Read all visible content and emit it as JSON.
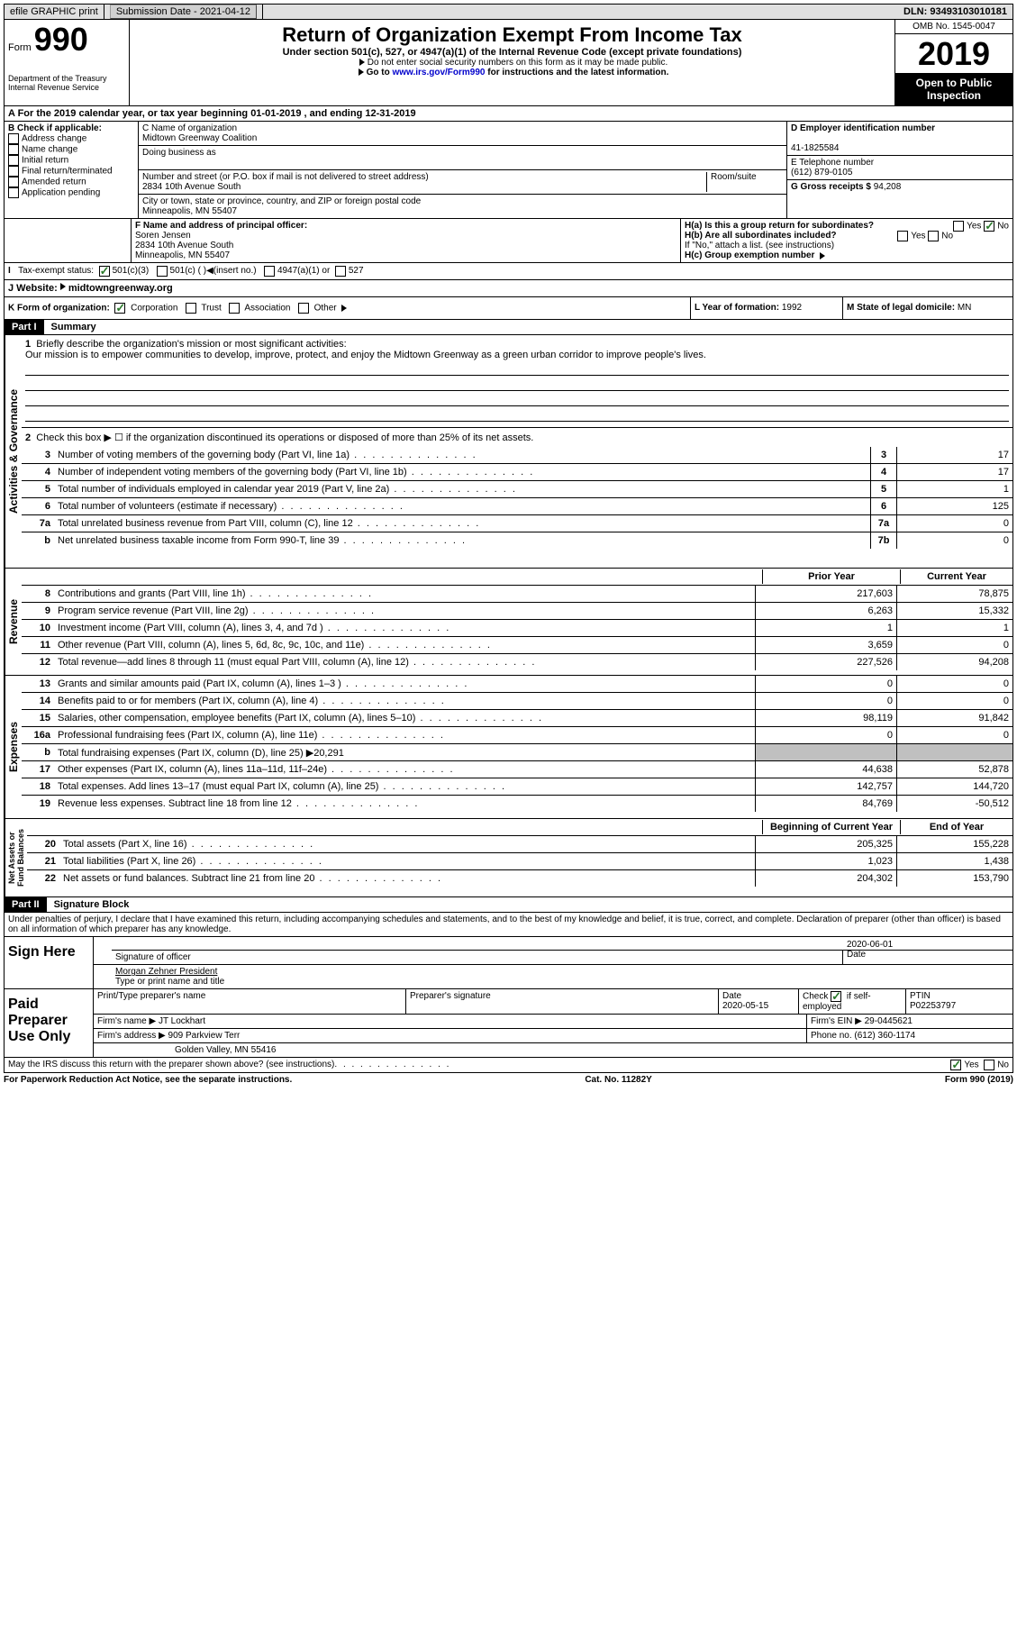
{
  "topbar": {
    "efile": "efile GRAPHIC print",
    "submission": "Submission Date - 2021-04-12",
    "dln": "DLN: 93493103010181"
  },
  "header": {
    "form_prefix": "Form",
    "form_num": "990",
    "dept": "Department of the Treasury\nInternal Revenue Service",
    "title": "Return of Organization Exempt From Income Tax",
    "subtitle": "Under section 501(c), 527, or 4947(a)(1) of the Internal Revenue Code (except private foundations)",
    "note1": "Do not enter social security numbers on this form as it may be made public.",
    "note2_pre": "Go to ",
    "note2_link": "www.irs.gov/Form990",
    "note2_post": " for instructions and the latest information.",
    "omb": "OMB No. 1545-0047",
    "year": "2019",
    "inspection": "Open to Public Inspection"
  },
  "section_a": "A For the 2019 calendar year, or tax year beginning 01-01-2019    , and ending 12-31-2019",
  "section_b": {
    "label": "B Check if applicable:",
    "addr": "Address change",
    "name": "Name change",
    "initial": "Initial return",
    "final": "Final return/terminated",
    "amended": "Amended return",
    "pending": "Application pending"
  },
  "section_c": {
    "name_label": "C Name of organization",
    "name": "Midtown Greenway Coalition",
    "dba": "Doing business as",
    "addr_label": "Number and street (or P.O. box if mail is not delivered to street address)",
    "room": "Room/suite",
    "addr": "2834 10th Avenue South",
    "city_label": "City or town, state or province, country, and ZIP or foreign postal code",
    "city": "Minneapolis, MN  55407"
  },
  "section_d": {
    "ein_label": "D Employer identification number",
    "ein": "41-1825584",
    "phone_label": "E Telephone number",
    "phone": "(612) 879-0105",
    "gross_label": "G Gross receipts $",
    "gross": "94,208"
  },
  "section_f": {
    "label": "F  Name and address of principal officer:",
    "name": "Soren Jensen",
    "addr": "2834 10th Avenue South",
    "city": "Minneapolis, MN  55407"
  },
  "section_h": {
    "ha": "H(a)  Is this a group return for subordinates?",
    "hb": "H(b)  Are all subordinates included?",
    "hb_note": "If \"No,\" attach a list. (see instructions)",
    "hc": "H(c)  Group exemption number",
    "yes": "Yes",
    "no": "No"
  },
  "tax_status": {
    "label": "Tax-exempt status:",
    "opt1": "501(c)(3)",
    "opt2": "501(c) (  )",
    "insert": "(insert no.)",
    "opt3": "4947(a)(1) or",
    "opt4": "527"
  },
  "website": {
    "label": "J    Website:",
    "url": "midtowngreenway.org"
  },
  "section_k": {
    "label": "K Form of organization:",
    "corp": "Corporation",
    "trust": "Trust",
    "assoc": "Association",
    "other": "Other"
  },
  "section_l": {
    "label": "L Year of formation:",
    "val": "1992"
  },
  "section_m": {
    "label": "M State of legal domicile:",
    "val": "MN"
  },
  "part1": {
    "header": "Part I",
    "title": "Summary"
  },
  "activities": {
    "label": "Activities & Governance",
    "line1_label": "Briefly describe the organization's mission or most significant activities:",
    "line1_text": "Our mission is to empower communities to develop, improve, protect, and enjoy the Midtown Greenway as a green urban corridor to improve people's lives.",
    "line2": "Check this box ▶ ☐ if the organization discontinued its operations or disposed of more than 25% of its net assets.",
    "lines": [
      {
        "n": "3",
        "t": "Number of voting members of the governing body (Part VI, line 1a)",
        "b": "3",
        "v": "17"
      },
      {
        "n": "4",
        "t": "Number of independent voting members of the governing body (Part VI, line 1b)",
        "b": "4",
        "v": "17"
      },
      {
        "n": "5",
        "t": "Total number of individuals employed in calendar year 2019 (Part V, line 2a)",
        "b": "5",
        "v": "1"
      },
      {
        "n": "6",
        "t": "Total number of volunteers (estimate if necessary)",
        "b": "6",
        "v": "125"
      },
      {
        "n": "7a",
        "t": "Total unrelated business revenue from Part VIII, column (C), line 12",
        "b": "7a",
        "v": "0"
      },
      {
        "n": "b",
        "t": "Net unrelated business taxable income from Form 990-T, line 39",
        "b": "7b",
        "v": "0"
      }
    ]
  },
  "revenue": {
    "label": "Revenue",
    "prior": "Prior Year",
    "current": "Current Year",
    "lines": [
      {
        "n": "8",
        "t": "Contributions and grants (Part VIII, line 1h)",
        "p": "217,603",
        "c": "78,875"
      },
      {
        "n": "9",
        "t": "Program service revenue (Part VIII, line 2g)",
        "p": "6,263",
        "c": "15,332"
      },
      {
        "n": "10",
        "t": "Investment income (Part VIII, column (A), lines 3, 4, and 7d )",
        "p": "1",
        "c": "1"
      },
      {
        "n": "11",
        "t": "Other revenue (Part VIII, column (A), lines 5, 6d, 8c, 9c, 10c, and 11e)",
        "p": "3,659",
        "c": "0"
      },
      {
        "n": "12",
        "t": "Total revenue—add lines 8 through 11 (must equal Part VIII, column (A), line 12)",
        "p": "227,526",
        "c": "94,208"
      }
    ]
  },
  "expenses": {
    "label": "Expenses",
    "lines": [
      {
        "n": "13",
        "t": "Grants and similar amounts paid (Part IX, column (A), lines 1–3 )",
        "p": "0",
        "c": "0"
      },
      {
        "n": "14",
        "t": "Benefits paid to or for members (Part IX, column (A), line 4)",
        "p": "0",
        "c": "0"
      },
      {
        "n": "15",
        "t": "Salaries, other compensation, employee benefits (Part IX, column (A), lines 5–10)",
        "p": "98,119",
        "c": "91,842"
      },
      {
        "n": "16a",
        "t": "Professional fundraising fees (Part IX, column (A), line 11e)",
        "p": "0",
        "c": "0"
      },
      {
        "n": "b",
        "t": "Total fundraising expenses (Part IX, column (D), line 25) ▶20,291",
        "shaded": true
      },
      {
        "n": "17",
        "t": "Other expenses (Part IX, column (A), lines 11a–11d, 11f–24e)",
        "p": "44,638",
        "c": "52,878"
      },
      {
        "n": "18",
        "t": "Total expenses. Add lines 13–17 (must equal Part IX, column (A), line 25)",
        "p": "142,757",
        "c": "144,720"
      },
      {
        "n": "19",
        "t": "Revenue less expenses. Subtract line 18 from line 12",
        "p": "84,769",
        "c": "-50,512"
      }
    ]
  },
  "netassets": {
    "label": "Net Assets or Fund Balances",
    "begin": "Beginning of Current Year",
    "end": "End of Year",
    "lines": [
      {
        "n": "20",
        "t": "Total assets (Part X, line 16)",
        "p": "205,325",
        "c": "155,228"
      },
      {
        "n": "21",
        "t": "Total liabilities (Part X, line 26)",
        "p": "1,023",
        "c": "1,438"
      },
      {
        "n": "22",
        "t": "Net assets or fund balances. Subtract line 21 from line 20",
        "p": "204,302",
        "c": "153,790"
      }
    ]
  },
  "part2": {
    "header": "Part II",
    "title": "Signature Block",
    "penalty": "Under penalties of perjury, I declare that I have examined this return, including accompanying schedules and statements, and to the best of my knowledge and belief, it is true, correct, and complete. Declaration of preparer (other than officer) is based on all information of which preparer has any knowledge."
  },
  "sign": {
    "label": "Sign Here",
    "sig_officer": "Signature of officer",
    "date": "Date",
    "date_val": "2020-06-01",
    "name": "Morgan Zehner President",
    "name_label": "Type or print name and title"
  },
  "preparer": {
    "label": "Paid Preparer Use Only",
    "print_label": "Print/Type preparer's name",
    "sig_label": "Preparer's signature",
    "date_label": "Date",
    "date_val": "2020-05-15",
    "check_label": "Check ☑ if self-employed",
    "ptin_label": "PTIN",
    "ptin": "P02253797",
    "firm_name_label": "Firm's name    ▶",
    "firm_name": "JT Lockhart",
    "firm_ein_label": "Firm's EIN ▶",
    "firm_ein": "29-0445621",
    "firm_addr_label": "Firm's address ▶",
    "firm_addr": "909 Parkview Terr",
    "firm_city": "Golden Valley, MN  55416",
    "phone_label": "Phone no.",
    "phone": "(612) 360-1174"
  },
  "discuss": "May the IRS discuss this return with the preparer shown above? (see instructions)",
  "footer": {
    "left": "For Paperwork Reduction Act Notice, see the separate instructions.",
    "center": "Cat. No. 11282Y",
    "right": "Form 990 (2019)"
  }
}
